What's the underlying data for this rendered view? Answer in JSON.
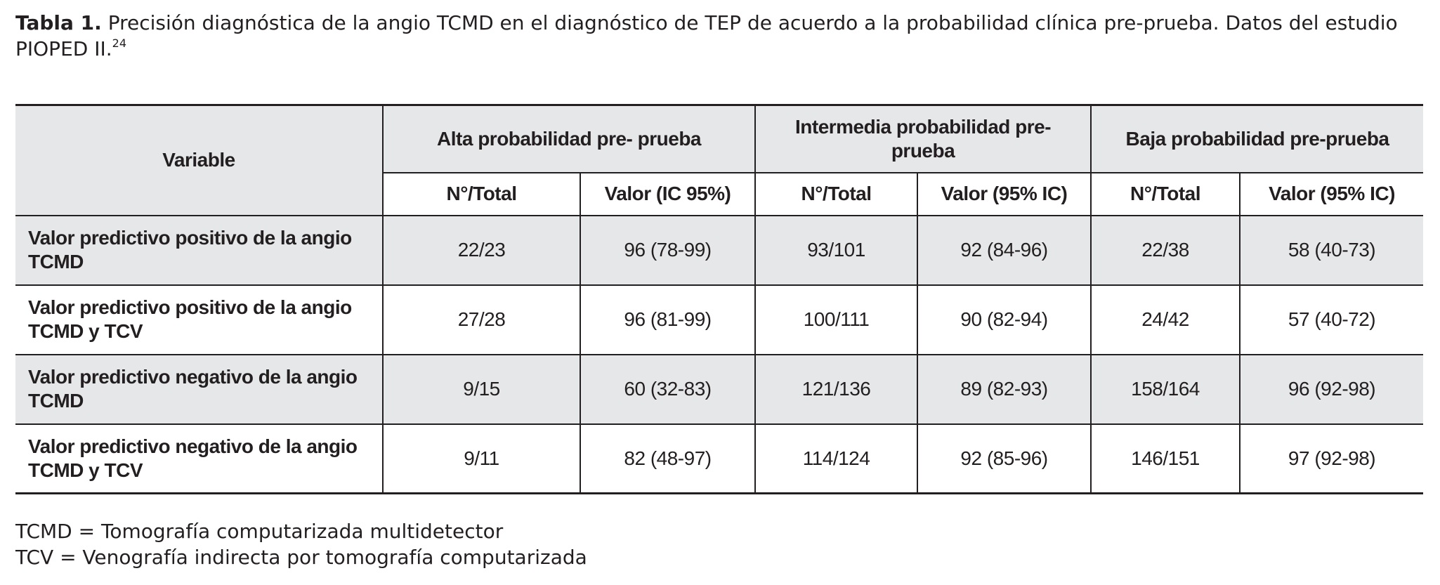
{
  "caption": {
    "label": "Tabla 1.",
    "text": "Precisión diagnóstica de la angio TCMD en el diagnóstico de TEP de acuerdo a la probabilidad clínica pre-prueba. Datos del estudio PIOPED II.",
    "reference": "24"
  },
  "table": {
    "header": {
      "variable": "Variable",
      "groups": [
        "Alta probabilidad pre- prueba",
        "Intermedia probabilidad pre-prueba",
        "Baja probabilidad pre-prueba"
      ],
      "subheaders": [
        "N°/Total",
        "Valor (IC 95%)",
        "N°/Total",
        "Valor (95% IC)",
        "N°/Total",
        "Valor (95% IC)"
      ]
    },
    "rows": [
      [
        "Valor predictivo positivo de la angio TCMD",
        "22/23",
        "96 (78-99)",
        "93/101",
        "92 (84-96)",
        "22/38",
        "58 (40-73)"
      ],
      [
        "Valor predictivo positivo de la angio TCMD y TCV",
        "27/28",
        "96 (81-99)",
        "100/111",
        "90 (82-94)",
        "24/42",
        "57 (40-72)"
      ],
      [
        "Valor predictivo negativo de la angio TCMD",
        "9/15",
        "60 (32-83)",
        "121/136",
        "89 (82-93)",
        "158/164",
        "96 (92-98)"
      ],
      [
        "Valor predictivo negativo de la angio TCMD y TCV",
        "9/11",
        "82 (48-97)",
        "114/124",
        "92 (85-96)",
        "146/151",
        "97 (92-98)"
      ]
    ]
  },
  "footnotes": [
    "TCMD = Tomografía computarizada multidetector",
    "TCV = Venografía indirecta por tomografía computarizada"
  ]
}
